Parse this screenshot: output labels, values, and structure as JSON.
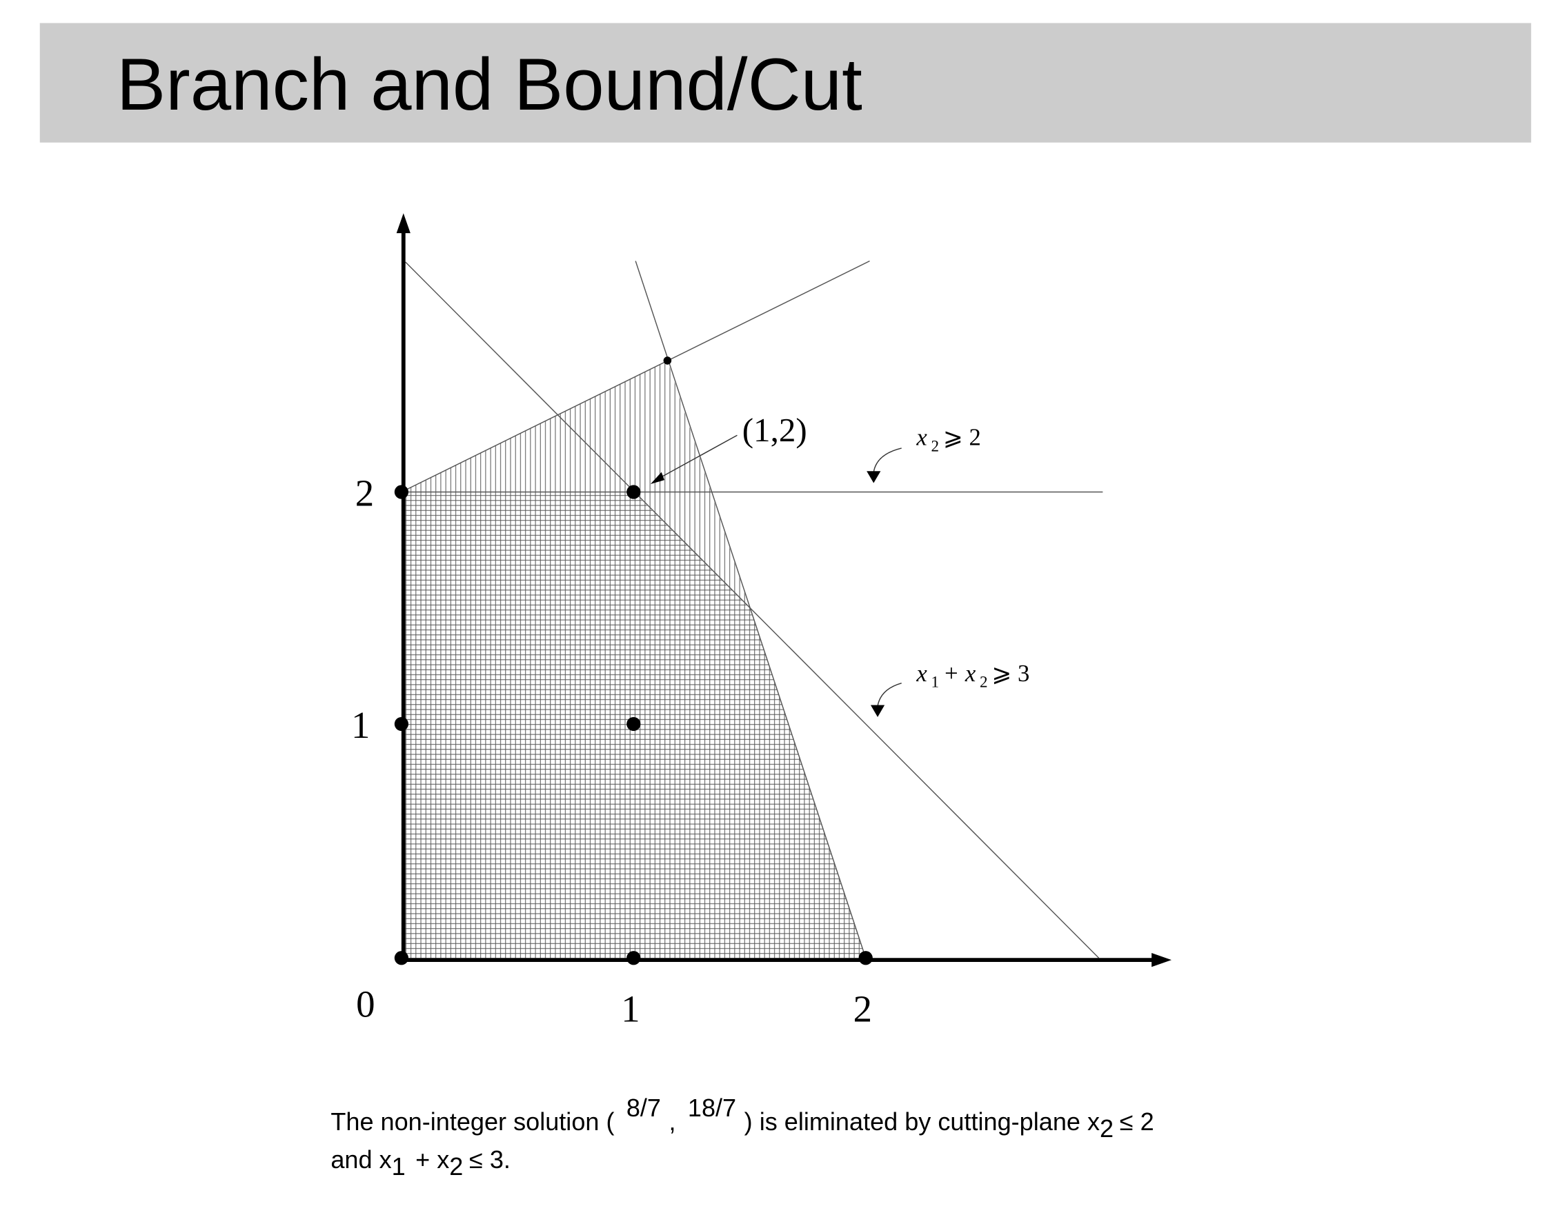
{
  "header": {
    "title": "Branch and Bound/Cut"
  },
  "diagram": {
    "x_labels": [
      "0",
      "1",
      "2"
    ],
    "y_labels": [
      "1",
      "2"
    ],
    "point_label": "(1,2)",
    "constraint_a": [
      "x",
      "2",
      "⩾ 2"
    ],
    "constraint_b": [
      "x",
      "1",
      "+ x",
      "2",
      "⩾ 3"
    ]
  },
  "caption": {
    "line1": [
      "The non-integer solution (",
      "8/7",
      ",",
      "18/7",
      ") is eliminated by cutting-plane x",
      "2",
      "≤ 2"
    ],
    "line2": [
      "and x",
      "1",
      "+ x",
      "2",
      "≤ 3."
    ]
  }
}
